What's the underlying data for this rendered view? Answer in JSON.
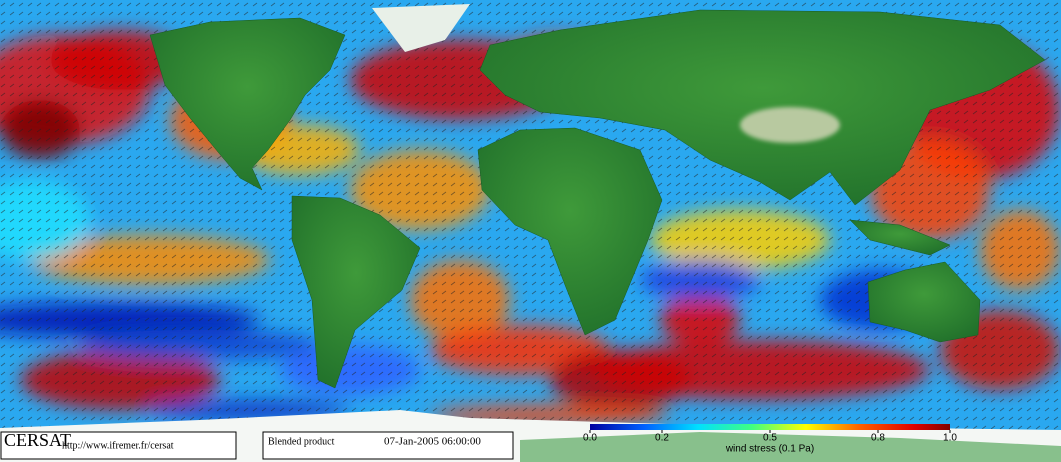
{
  "logo": "CERSAT",
  "url": "http://www.ifremer.fr/cersat",
  "product": "Blended product",
  "timestamp": "07-Jan-2005 06:00:00",
  "colorbar": {
    "label": "wind stress (0.1 Pa)",
    "range": [
      0,
      1
    ],
    "ticks": [
      {
        "value": 0,
        "label": "0.0"
      },
      {
        "value": 0.2,
        "label": "0.2"
      },
      {
        "value": 0.5,
        "label": "0.5"
      },
      {
        "value": 0.8,
        "label": "0.8"
      },
      {
        "value": 1,
        "label": "1.0"
      }
    ]
  }
}
